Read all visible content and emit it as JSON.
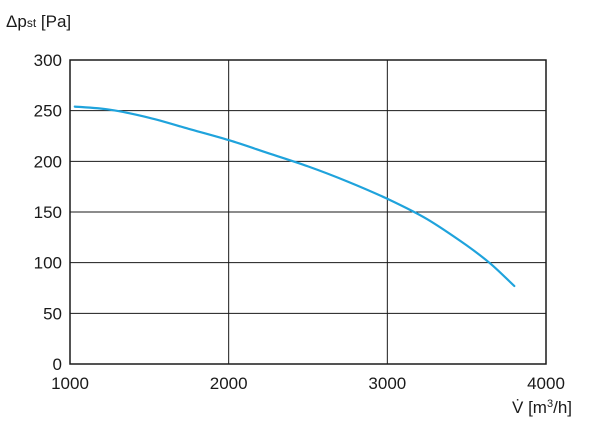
{
  "chart_data": {
    "type": "line",
    "title": "",
    "xlabel_main": "V̇",
    "xlabel_unit_prefix": " [m",
    "xlabel_unit_sup": "3",
    "xlabel_unit_suffix": "/h]",
    "ylabel_main": "Δp",
    "ylabel_sub": "st",
    "ylabel_unit": " [Pa]",
    "xlim": [
      1000,
      4000
    ],
    "ylim": [
      0,
      300
    ],
    "x_ticks": [
      1000,
      2000,
      3000,
      4000
    ],
    "x_tick_labels": [
      "1000",
      "2000",
      "3000",
      "4000"
    ],
    "y_ticks": [
      0,
      50,
      100,
      150,
      200,
      250,
      300
    ],
    "y_tick_labels": [
      "0",
      "50",
      "100",
      "150",
      "200",
      "250",
      "300"
    ],
    "grid": true,
    "series": [
      {
        "color": "#1fa3dc",
        "x": [
          1030,
          1250,
          1500,
          1750,
          2000,
          2250,
          2500,
          2750,
          3000,
          3250,
          3500,
          3650,
          3800
        ],
        "y": [
          254,
          251,
          243,
          232,
          221,
          208,
          195,
          180,
          163,
          143,
          117,
          99,
          77
        ]
      }
    ]
  }
}
